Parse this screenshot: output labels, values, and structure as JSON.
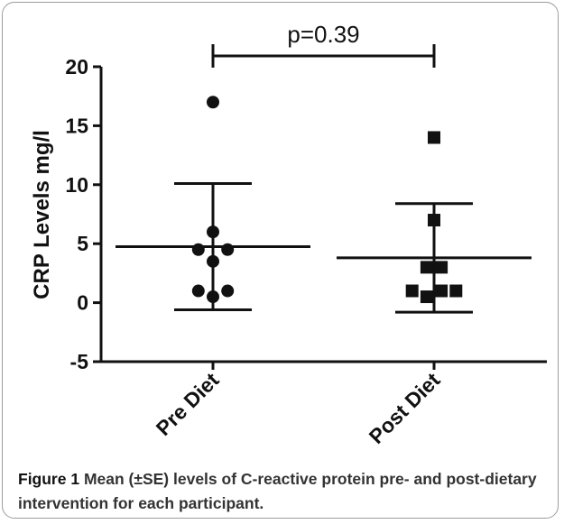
{
  "chart_data": {
    "type": "scatter",
    "title": "",
    "xlabel": "",
    "ylabel": "CRP Levels mg/l",
    "ylim": [
      -5,
      20
    ],
    "yticks": [
      -5,
      0,
      5,
      10,
      15,
      20
    ],
    "grid": false,
    "legend": "none",
    "categories": [
      "Pre Diet",
      "Post Diet"
    ],
    "series": [
      {
        "category": "Pre Diet",
        "marker": "circle",
        "values": [
          17,
          6,
          4.5,
          4.5,
          3.5,
          1,
          1,
          0.5
        ],
        "x_offsets": [
          0,
          0,
          -0.6,
          0.6,
          0,
          -0.6,
          0.6,
          0
        ],
        "mean": 4.75,
        "error_low": -0.6,
        "error_high": 10.1
      },
      {
        "category": "Post Diet",
        "marker": "square",
        "values": [
          14,
          7,
          3,
          3,
          1,
          1,
          0.5,
          1
        ],
        "x_offsets": [
          0,
          0,
          -0.3,
          0.3,
          -0.9,
          0.9,
          -0.3,
          0.3
        ],
        "mean": 3.8,
        "error_low": -0.8,
        "error_high": 8.4
      }
    ],
    "annotation": {
      "text": "p=0.39",
      "y": 20,
      "from_category": "Pre Diet",
      "to_category": "Post Diet"
    },
    "colors": {
      "marks": "#111111",
      "axis": "#111111"
    }
  },
  "caption": {
    "label": "Figure 1",
    "text": " Mean (±SE) levels of C-reactive protein pre- and post-dietary intervention for each participant."
  }
}
